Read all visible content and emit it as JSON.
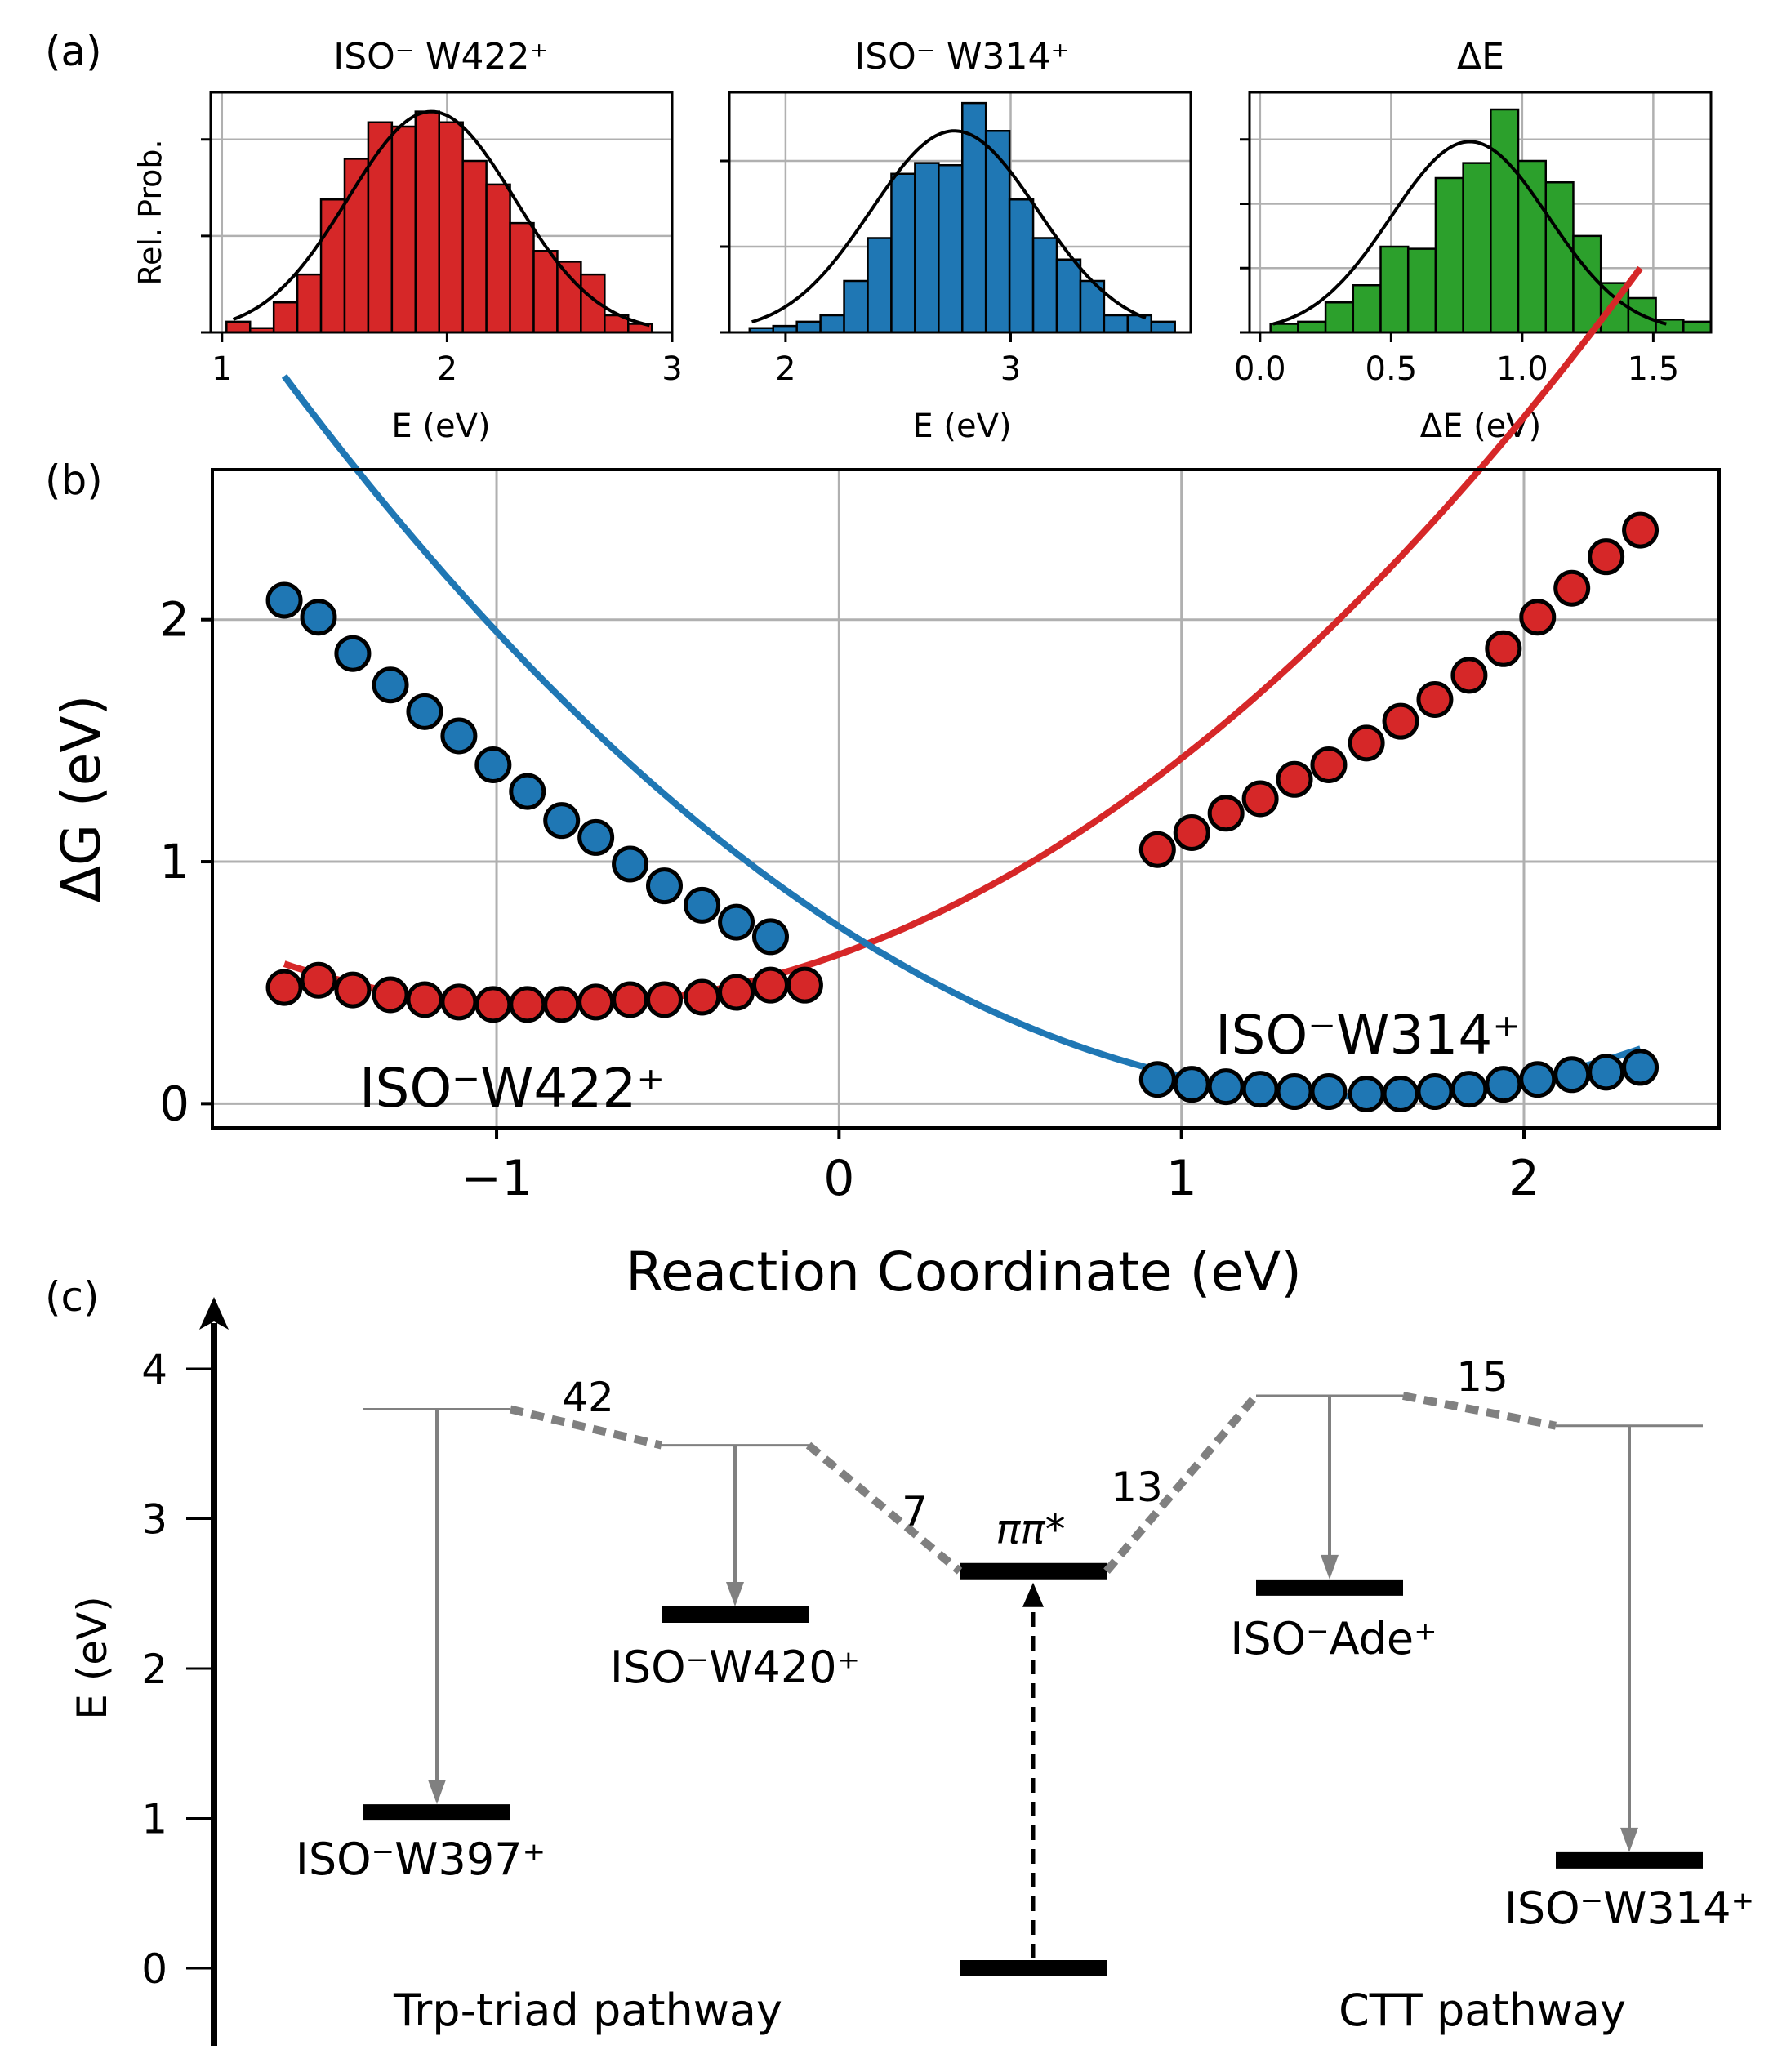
{
  "panel_labels": [
    "(a)",
    "(b)",
    "(c)"
  ],
  "colors": {
    "red": "#d62728",
    "blue": "#1f77b4",
    "green": "#2ca02c",
    "grid": "#b0b0b0",
    "level_line": "#808080"
  },
  "chart_data": [
    {
      "type": "bar",
      "title": "ISO⁻ W422⁺",
      "xlabel": "E (eV)",
      "ylabel": "Rel. Prob.",
      "xlim": [
        0.95,
        3.0
      ],
      "ylim": [
        0,
        1.12
      ],
      "xticks": [
        1,
        2,
        3
      ],
      "xtick_labels": [
        "1",
        "2",
        "3"
      ],
      "yticks": [
        0.45,
        0.9
      ],
      "color": "#d62728",
      "bin_width": 0.105,
      "bin_starts": [
        1.02,
        1.125,
        1.23,
        1.335,
        1.44,
        1.545,
        1.65,
        1.755,
        1.86,
        1.965,
        2.07,
        2.175,
        2.28,
        2.385,
        2.49,
        2.595,
        2.7,
        2.805
      ],
      "values": [
        0.05,
        0.02,
        0.14,
        0.27,
        0.62,
        0.81,
        0.98,
        0.96,
        1.03,
        0.98,
        0.8,
        0.69,
        0.51,
        0.38,
        0.33,
        0.27,
        0.08,
        0.04
      ],
      "fit_curve": {
        "mean": 1.93,
        "sigma": 0.37,
        "peak": 1.03,
        "from": 1.05,
        "to": 2.9
      }
    },
    {
      "type": "bar",
      "title": "ISO⁻ W314⁺",
      "xlabel": "E (eV)",
      "ylabel": "",
      "xlim": [
        1.75,
        3.8
      ],
      "ylim": [
        0,
        1.12
      ],
      "xticks": [
        2,
        3
      ],
      "xtick_labels": [
        "2",
        "3"
      ],
      "yticks": [
        0.4,
        0.8
      ],
      "color": "#1f77b4",
      "bin_width": 0.105,
      "bin_starts": [
        1.84,
        1.945,
        2.05,
        2.155,
        2.26,
        2.365,
        2.47,
        2.575,
        2.68,
        2.785,
        2.89,
        2.995,
        3.1,
        3.205,
        3.31,
        3.415,
        3.52,
        3.625
      ],
      "values": [
        0.02,
        0.03,
        0.05,
        0.08,
        0.24,
        0.44,
        0.74,
        0.79,
        0.78,
        1.07,
        0.94,
        0.62,
        0.44,
        0.34,
        0.24,
        0.08,
        0.08,
        0.05
      ],
      "fit_curve": {
        "mean": 2.75,
        "sigma": 0.37,
        "peak": 0.94,
        "from": 1.85,
        "to": 3.6
      }
    },
    {
      "type": "bar",
      "title": "ΔE",
      "xlabel": "ΔE (eV)",
      "ylabel": "",
      "xlim": [
        -0.04,
        1.72
      ],
      "ylim": [
        0,
        1.12
      ],
      "xticks": [
        0.0,
        0.5,
        1.0,
        1.5
      ],
      "xtick_labels": [
        "0.0",
        "0.5",
        "1.0",
        "1.5"
      ],
      "yticks": [
        0.3,
        0.6,
        0.9
      ],
      "color": "#2ca02c",
      "bin_width": 0.105,
      "bin_starts": [
        0.04,
        0.145,
        0.25,
        0.355,
        0.46,
        0.565,
        0.67,
        0.775,
        0.88,
        0.985,
        1.09,
        1.195,
        1.3,
        1.405,
        1.51,
        1.615
      ],
      "values": [
        0.04,
        0.05,
        0.14,
        0.22,
        0.4,
        0.39,
        0.72,
        0.79,
        1.04,
        0.8,
        0.7,
        0.45,
        0.23,
        0.16,
        0.06,
        0.05
      ],
      "fit_curve": {
        "mean": 0.8,
        "sigma": 0.3,
        "peak": 0.89,
        "from": 0.05,
        "to": 1.55
      }
    },
    {
      "type": "line",
      "xlabel": "Reaction Coordinate (eV)",
      "ylabel": "ΔG (eV)",
      "xlim": [
        -1.83,
        2.57
      ],
      "ylim": [
        -0.1,
        2.62
      ],
      "xticks": [
        -1,
        0,
        1,
        2
      ],
      "xtick_labels": [
        "−1",
        "0",
        "1",
        "2"
      ],
      "yticks": [
        0,
        1,
        2
      ],
      "ytick_labels": [
        "0",
        "1",
        "2"
      ],
      "grid": true,
      "series": [
        {
          "name": "ISO⁻ W422⁺",
          "color": "#d62728",
          "curve": {
            "a": 0.3,
            "center": -0.85,
            "offset": 0.4,
            "from": -1.62,
            "to": 2.34
          },
          "points_x": [
            -1.62,
            -1.52,
            -1.42,
            -1.31,
            -1.21,
            -1.11,
            -1.01,
            -0.91,
            -0.81,
            -0.71,
            -0.61,
            -0.51,
            -0.4,
            -0.3,
            -0.2,
            -0.1,
            0.93,
            1.03,
            1.13,
            1.23,
            1.33,
            1.43,
            1.54,
            1.64,
            1.74,
            1.84,
            1.94,
            2.04,
            2.14,
            2.24,
            2.34
          ],
          "points_y": [
            0.48,
            0.51,
            0.47,
            0.45,
            0.43,
            0.42,
            0.41,
            0.41,
            0.41,
            0.42,
            0.43,
            0.43,
            0.44,
            0.46,
            0.49,
            0.49,
            1.05,
            1.12,
            1.2,
            1.26,
            1.34,
            1.4,
            1.49,
            1.58,
            1.67,
            1.77,
            1.88,
            2.01,
            2.13,
            2.26,
            2.37
          ]
        },
        {
          "name": "ISO⁻ W314⁺",
          "color": "#1f77b4",
          "curve": {
            "a": 0.3,
            "center": 1.53,
            "offset": 0.03,
            "from": -1.62,
            "to": 2.34
          },
          "points_x": [
            -1.62,
            -1.52,
            -1.42,
            -1.31,
            -1.21,
            -1.11,
            -1.01,
            -0.91,
            -0.81,
            -0.71,
            -0.61,
            -0.51,
            -0.4,
            -0.3,
            -0.2,
            0.93,
            1.03,
            1.13,
            1.23,
            1.33,
            1.43,
            1.54,
            1.64,
            1.74,
            1.84,
            1.94,
            2.04,
            2.14,
            2.24,
            2.34
          ],
          "points_y": [
            2.08,
            2.01,
            1.86,
            1.73,
            1.62,
            1.52,
            1.4,
            1.29,
            1.17,
            1.1,
            0.99,
            0.9,
            0.82,
            0.75,
            0.69,
            0.1,
            0.08,
            0.07,
            0.06,
            0.05,
            0.05,
            0.04,
            0.04,
            0.05,
            0.06,
            0.08,
            0.1,
            0.12,
            0.13,
            0.15
          ]
        }
      ],
      "annotations": [
        "ISO⁻W422⁺",
        "ISO⁻W314⁺"
      ]
    },
    {
      "type": "energy_level_diagram",
      "ylabel": "E (eV)",
      "yticks": [
        0,
        1,
        2,
        3,
        4
      ],
      "ytick_labels": [
        "0",
        "1",
        "2",
        "3",
        "4"
      ],
      "levels": [
        {
          "name": "ISO⁻W397⁺",
          "upper": 3.73,
          "lower": 1.04
        },
        {
          "name": "ISO⁻W420⁺",
          "upper": 3.49,
          "lower": 2.36
        },
        {
          "name": "ππ*",
          "upper": 2.65,
          "lower": 0.0
        },
        {
          "name": "ISO⁻Ade⁺",
          "upper": 3.82,
          "lower": 2.54
        },
        {
          "name": "ISO⁻W314⁺",
          "upper": 3.62,
          "lower": 0.72
        }
      ],
      "couplings": [
        "42",
        "7",
        "13",
        "15"
      ],
      "pathway_labels": [
        "Trp-triad pathway",
        "CTT pathway"
      ]
    }
  ]
}
